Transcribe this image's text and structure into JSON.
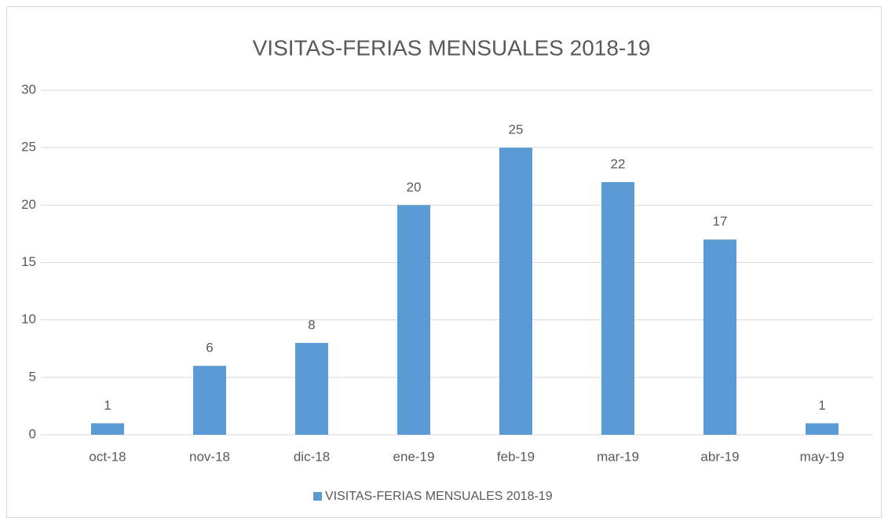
{
  "chart_data": {
    "type": "bar",
    "title": "VISITAS-FERIAS MENSUALES 2018-19",
    "categories": [
      "oct-18",
      "nov-18",
      "dic-18",
      "ene-19",
      "feb-19",
      "mar-19",
      "abr-19",
      "may-19"
    ],
    "series": [
      {
        "name": "VISITAS-FERIAS MENSUALES 2018-19",
        "color": "#5b9bd5",
        "values": [
          1,
          6,
          8,
          20,
          25,
          22,
          17,
          1
        ]
      }
    ],
    "ylim": [
      0,
      30
    ],
    "yticks": [
      0,
      5,
      10,
      15,
      20,
      25,
      30
    ],
    "grid": true,
    "data_labels": true,
    "legend": "bottom"
  }
}
